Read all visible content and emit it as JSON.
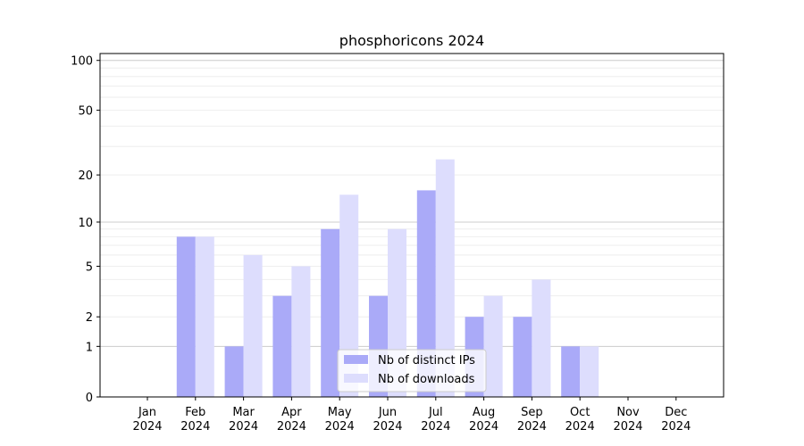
{
  "chart_data": {
    "type": "bar",
    "title": "phosphoricons 2024",
    "xlabel": "",
    "ylabel": "",
    "categories": [
      "Jan\n2024",
      "Feb\n2024",
      "Mar\n2024",
      "Apr\n2024",
      "May\n2024",
      "Jun\n2024",
      "Jul\n2024",
      "Aug\n2024",
      "Sep\n2024",
      "Oct\n2024",
      "Nov\n2024",
      "Dec\n2024"
    ],
    "series": [
      {
        "name": "Nb of distinct IPs",
        "color": "#aaaaf8",
        "values": [
          0,
          8,
          1,
          3,
          9,
          3,
          16,
          2,
          2,
          1,
          0,
          0
        ]
      },
      {
        "name": "Nb of downloads",
        "color": "#ddddfd",
        "values": [
          0,
          8,
          6,
          5,
          15,
          9,
          25,
          3,
          4,
          1,
          0,
          0
        ]
      }
    ],
    "y_scale": "symlog",
    "y_ticks": [
      0,
      1,
      2,
      5,
      10,
      20,
      50,
      100
    ],
    "y_tick_labels": [
      "0",
      "1",
      "2",
      "5",
      "10",
      "20",
      "50",
      "100"
    ],
    "ylim": [
      0,
      110
    ],
    "grid": true,
    "legend_position": "bottom-center"
  }
}
